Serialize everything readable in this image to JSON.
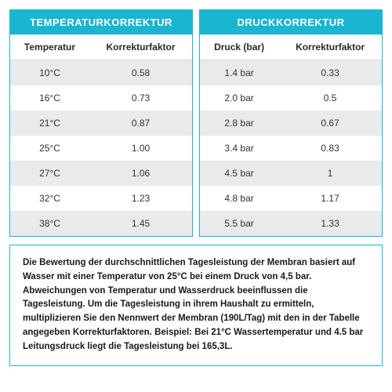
{
  "colors": {
    "accent": "#1ab5d0",
    "row_odd": "#e9eaeb",
    "row_even": "#ffffff",
    "text": "#333333",
    "header_text": "#2a2a2a"
  },
  "typography": {
    "title_fontsize": 13,
    "header_fontsize": 12,
    "cell_fontsize": 12,
    "note_fontsize": 11.5
  },
  "tables": {
    "temp": {
      "title": "TEMPERATURKORREKTUR",
      "columns": [
        "Temperatur",
        "Korrekturfaktor"
      ],
      "rows": [
        [
          "10°C",
          "0.58"
        ],
        [
          "16°C",
          "0.73"
        ],
        [
          "21°C",
          "0.87"
        ],
        [
          "25°C",
          "1.00"
        ],
        [
          "27°C",
          "1.06"
        ],
        [
          "32°C",
          "1.23"
        ],
        [
          "38°C",
          "1.45"
        ]
      ]
    },
    "pressure": {
      "title": "DRUCKKORREKTUR",
      "columns": [
        "Druck (bar)",
        "Korrekturfaktor"
      ],
      "rows": [
        [
          "1.4 bar",
          "0.33"
        ],
        [
          "2.0 bar",
          "0.5"
        ],
        [
          "2.8 bar",
          "0.67"
        ],
        [
          "3.4 bar",
          "0.83"
        ],
        [
          "4.5 bar",
          "1"
        ],
        [
          "4.8 bar",
          "1.17"
        ],
        [
          "5.5 bar",
          "1.33"
        ]
      ]
    }
  },
  "note": "Die Bewertung der durchschnittlichen Tagesleistung der Membran basiert auf Wasser mit einer Temperatur von 25°C bei einem Druck von 4,5 bar. Abweichungen von Temperatur und Wasserdruck beeinflussen die Tagesleistung. Um die Tagesleistung in ihrem Haushalt zu ermitteln, multiplizieren Sie den Nennwert der Membran (190L/Tag) mit den in der Tabelle angegeben Korrekturfaktoren. Beispiel: Bei 21°C Wassertemperatur und 4.5 bar Leitungsdruck liegt die Tagesleistung bei 165,3L."
}
